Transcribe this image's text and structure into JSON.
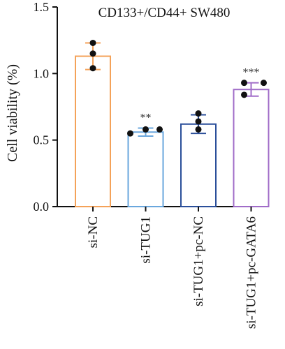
{
  "chart_data": {
    "type": "bar",
    "title": "CD133+/CD44+ SW480",
    "ylabel": "Cell viability (%)",
    "xlabel": "",
    "ylim": [
      0,
      1.5
    ],
    "yticks": [
      "0.0",
      "0.5",
      "1.0",
      "1.5"
    ],
    "grid": false,
    "categories": [
      "si-NC",
      "si-TUG1",
      "si-TUG1+pc-NC",
      "si-TUG1+pc-GATA6"
    ],
    "values": [
      1.13,
      0.56,
      0.62,
      0.88
    ],
    "errors": [
      0.1,
      0.03,
      0.07,
      0.05
    ],
    "points": [
      [
        1.23,
        1.15,
        1.04
      ],
      [
        0.55,
        0.58,
        0.58
      ],
      [
        0.7,
        0.64,
        0.58
      ],
      [
        0.93,
        0.84,
        0.93
      ]
    ],
    "significance": [
      "",
      "**",
      "",
      "***"
    ],
    "colors": [
      "#f4a259",
      "#6aa7dd",
      "#2b4f9a",
      "#a06cc8"
    ]
  }
}
